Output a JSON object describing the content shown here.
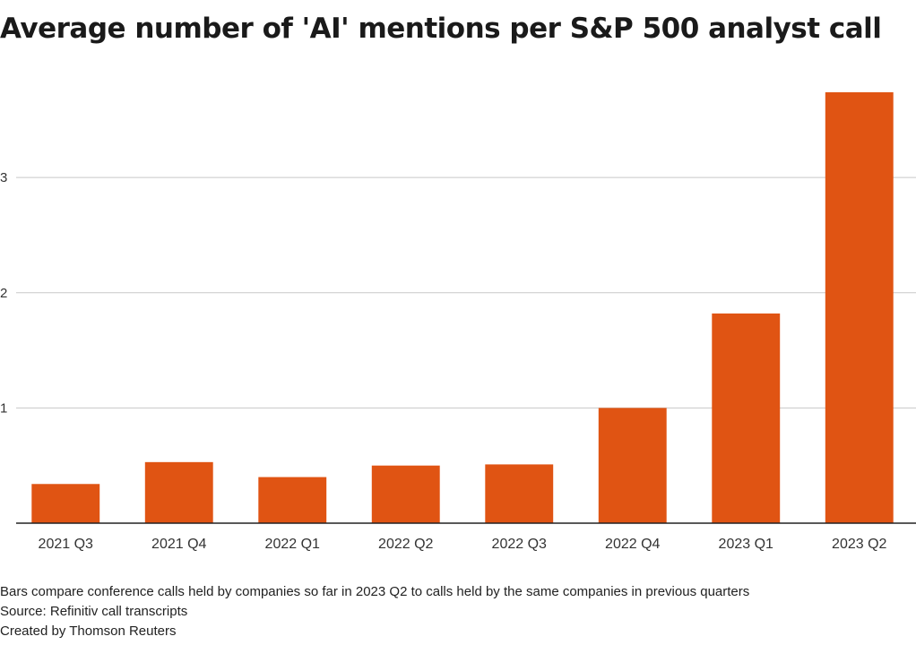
{
  "chart_data": {
    "type": "bar",
    "title": "Average number of 'AI' mentions per S&P 500 analyst call",
    "xlabel": "",
    "ylabel": "",
    "categories": [
      "2021 Q3",
      "2021 Q4",
      "2022 Q1",
      "2022 Q2",
      "2022 Q3",
      "2022 Q4",
      "2023 Q1",
      "2023 Q2"
    ],
    "values": [
      0.34,
      0.53,
      0.4,
      0.5,
      0.51,
      1.0,
      1.82,
      3.74
    ],
    "yticks": [
      1,
      2,
      3
    ],
    "ylim": [
      0,
      3.95
    ],
    "grid": true,
    "colors": {
      "bar": "#e05413",
      "grid": "#c8c8c8",
      "axis": "#222222"
    }
  },
  "footer": {
    "note": "Bars compare conference calls held by companies so far in 2023 Q2 to calls held by the same companies in previous quarters",
    "source": "Source: Refinitiv call transcripts",
    "credit": "Created by Thomson Reuters"
  }
}
